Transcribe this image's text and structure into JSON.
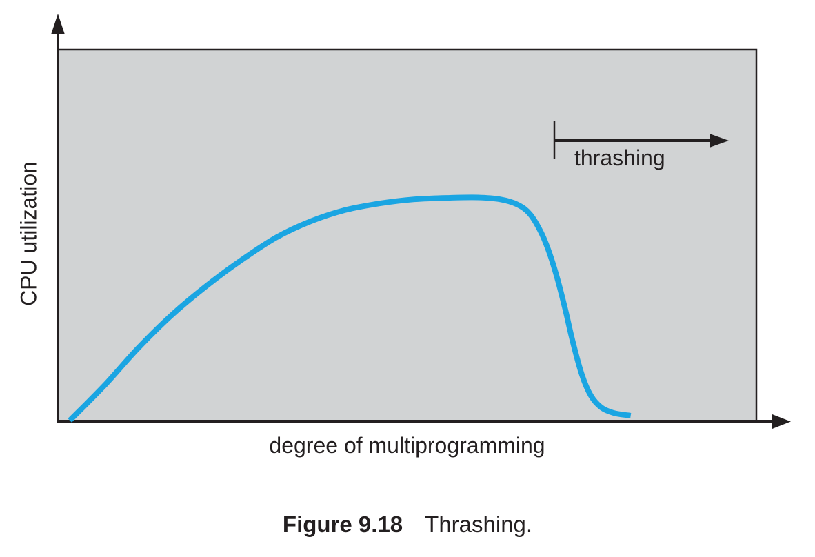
{
  "figure": {
    "y_axis_label": "CPU utilization",
    "x_axis_label": "degree of multiprogramming",
    "annotation_label": "thrashing",
    "caption_label": "Figure 9.18",
    "caption_text": "Thrashing."
  },
  "colors": {
    "ink": "#231f20",
    "plot_fill": "#d1d3d4",
    "curve": "#1aa5e2",
    "page_background": "#ffffff"
  },
  "chart_data": {
    "type": "line",
    "title": "Figure 9.18 Thrashing.",
    "xlabel": "degree of multiprogramming",
    "ylabel": "CPU utilization",
    "x_range": [
      0,
      1
    ],
    "y_range": [
      0,
      1
    ],
    "grid": false,
    "legend": false,
    "tick_labels": "none (qualitative axes)",
    "series": [
      {
        "name": "CPU utilization vs degree of multiprogramming",
        "color": "#1aa5e2",
        "points": [
          [
            0.017,
            0.002
          ],
          [
            0.066,
            0.095
          ],
          [
            0.115,
            0.197
          ],
          [
            0.165,
            0.289
          ],
          [
            0.214,
            0.366
          ],
          [
            0.263,
            0.434
          ],
          [
            0.313,
            0.495
          ],
          [
            0.362,
            0.538
          ],
          [
            0.411,
            0.568
          ],
          [
            0.461,
            0.586
          ],
          [
            0.51,
            0.597
          ],
          [
            0.559,
            0.601
          ],
          [
            0.601,
            0.602
          ],
          [
            0.633,
            0.597
          ],
          [
            0.658,
            0.583
          ],
          [
            0.676,
            0.557
          ],
          [
            0.692,
            0.507
          ],
          [
            0.704,
            0.451
          ],
          [
            0.715,
            0.384
          ],
          [
            0.726,
            0.304
          ],
          [
            0.737,
            0.215
          ],
          [
            0.75,
            0.126
          ],
          [
            0.763,
            0.069
          ],
          [
            0.778,
            0.037
          ],
          [
            0.796,
            0.022
          ],
          [
            0.82,
            0.015
          ]
        ]
      }
    ],
    "annotations": [
      {
        "text": "thrashing",
        "shape": "rightward-arrow-with-start-tick",
        "x_start": 0.711,
        "x_end": 0.961,
        "y": 0.755
      }
    ]
  }
}
